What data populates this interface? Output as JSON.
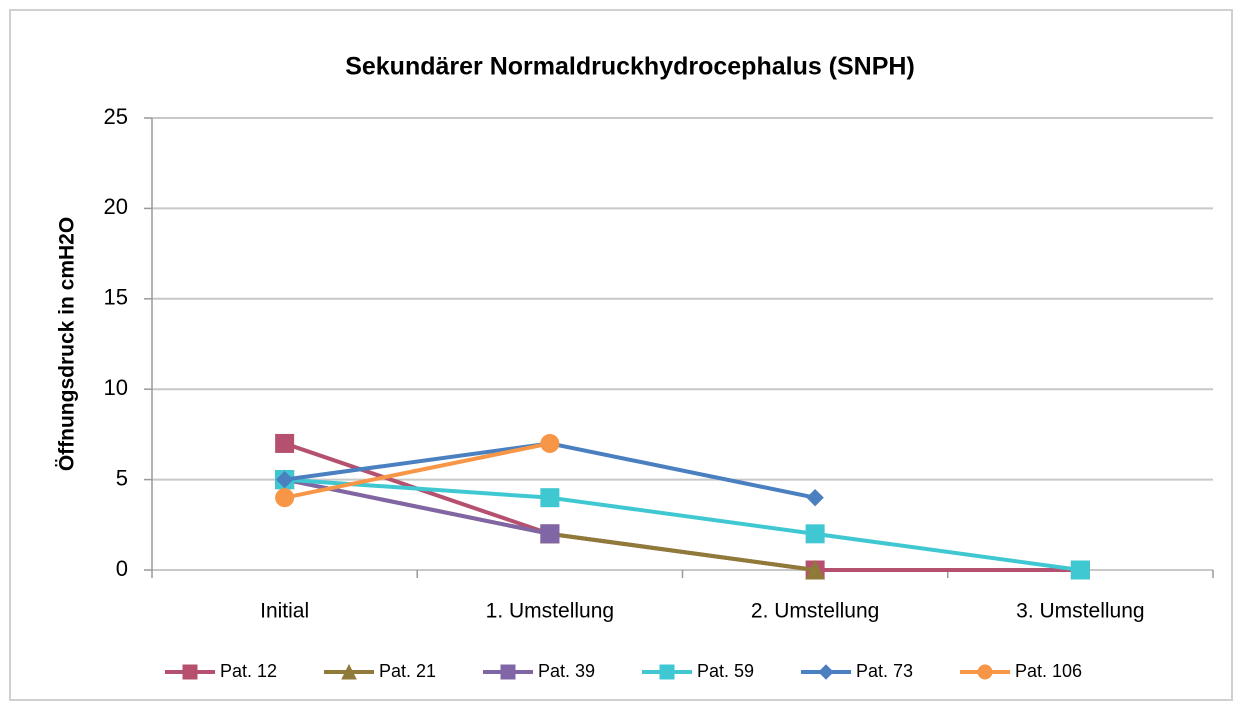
{
  "chart_data": {
    "type": "line",
    "title": "Sekundärer Normaldruckhydrocephalus (SNPH)",
    "y_label": "Öffnungsdruck in cmH2O",
    "categories": [
      "Initial",
      "1. Umstellung",
      "2. Umstellung",
      "3. Umstellung"
    ],
    "ylim": [
      0,
      25
    ],
    "yticks": [
      0,
      5,
      10,
      15,
      20,
      25
    ],
    "grid": true,
    "legend": "bottom",
    "series": [
      {
        "name": "Pat. 12",
        "color": "#b6506f",
        "marker": "square",
        "values": [
          7,
          2,
          0,
          0
        ]
      },
      {
        "name": "Pat. 21",
        "color": "#8f7a3a",
        "marker": "triangle",
        "values": [
          5,
          2,
          0,
          null
        ]
      },
      {
        "name": "Pat. 39",
        "color": "#8066a4",
        "marker": "square",
        "values": [
          5,
          2,
          null,
          null
        ]
      },
      {
        "name": "Pat. 59",
        "color": "#3fc8d2",
        "marker": "square",
        "values": [
          5,
          4,
          2,
          0
        ]
      },
      {
        "name": "Pat. 73",
        "color": "#4a7fc0",
        "marker": "diamond",
        "values": [
          5,
          7,
          4,
          null
        ]
      },
      {
        "name": "Pat. 106",
        "color": "#f79646",
        "marker": "circle",
        "values": [
          4,
          7,
          null,
          null
        ]
      }
    ]
  }
}
